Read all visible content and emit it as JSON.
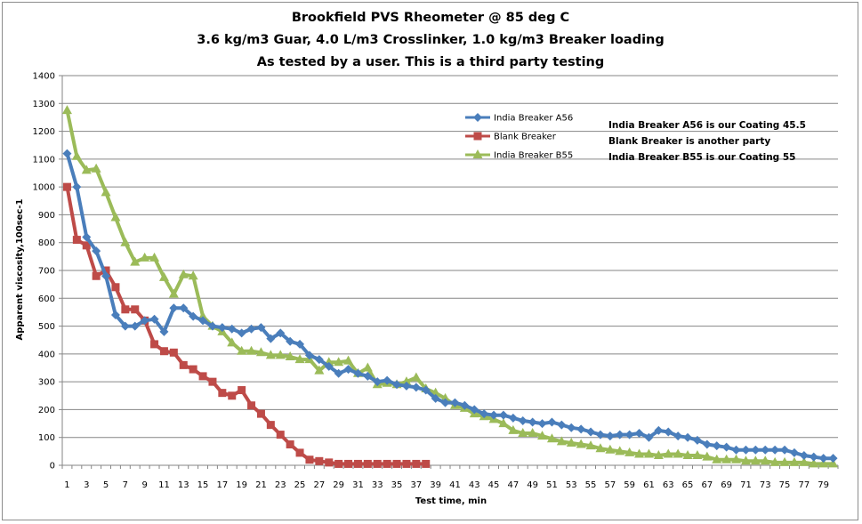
{
  "chart_data": {
    "type": "line",
    "title_lines": [
      "Brookfield PVS Rheometer @ 85 deg C",
      "3.6 kg/m3 Guar, 4.0 L/m3 Crosslinker, 1.0 kg/m3 Breaker loading",
      "As tested by a user. This is a third party testing"
    ],
    "xlabel": "Test time, min",
    "ylabel": "Apparent viscosity,100sec-1",
    "ylim": [
      0,
      1400
    ],
    "yticks": [
      0,
      100,
      200,
      300,
      400,
      500,
      600,
      700,
      800,
      900,
      1000,
      1100,
      1200,
      1300,
      1400
    ],
    "xlim": [
      1,
      80
    ],
    "xtick_labels": [
      1,
      3,
      5,
      7,
      9,
      11,
      13,
      15,
      17,
      19,
      21,
      23,
      25,
      27,
      29,
      31,
      33,
      35,
      37,
      39,
      41,
      43,
      45,
      47,
      49,
      51,
      53,
      55,
      57,
      59,
      61,
      63,
      65,
      67,
      69,
      71,
      73,
      75,
      77,
      79
    ],
    "grid": "horizontal",
    "legend_position": "top-right",
    "series": [
      {
        "name": "India Breaker A56",
        "color": "#4a7ebb",
        "marker": "diamond",
        "x": [
          1,
          2,
          3,
          4,
          5,
          6,
          7,
          8,
          9,
          10,
          11,
          12,
          13,
          14,
          15,
          16,
          17,
          18,
          19,
          20,
          21,
          22,
          23,
          24,
          25,
          26,
          27,
          28,
          29,
          30,
          31,
          32,
          33,
          34,
          35,
          36,
          37,
          38,
          39,
          40,
          41,
          42,
          43,
          44,
          45,
          46,
          47,
          48,
          49,
          50,
          51,
          52,
          53,
          54,
          55,
          56,
          57,
          58,
          59,
          60,
          61,
          62,
          63,
          64,
          65,
          66,
          67,
          68,
          69,
          70,
          71,
          72,
          73,
          74,
          75,
          76,
          77,
          78,
          79,
          80
        ],
        "values": [
          1120,
          1000,
          820,
          770,
          680,
          540,
          500,
          500,
          520,
          525,
          480,
          565,
          565,
          535,
          520,
          500,
          495,
          490,
          475,
          490,
          495,
          455,
          475,
          445,
          435,
          395,
          380,
          355,
          330,
          345,
          330,
          320,
          300,
          305,
          290,
          285,
          280,
          270,
          240,
          225,
          225,
          215,
          200,
          185,
          180,
          180,
          170,
          160,
          155,
          150,
          155,
          145,
          135,
          130,
          120,
          110,
          105,
          110,
          110,
          115,
          100,
          125,
          120,
          105,
          100,
          90,
          75,
          70,
          65,
          55,
          55,
          55,
          55,
          55,
          55,
          45,
          35,
          30,
          25,
          25
        ]
      },
      {
        "name": "Blank Breaker",
        "color": "#be4b48",
        "marker": "square",
        "x": [
          1,
          2,
          3,
          4,
          5,
          6,
          7,
          8,
          9,
          10,
          11,
          12,
          13,
          14,
          15,
          16,
          17,
          18,
          19,
          20,
          21,
          22,
          23,
          24,
          25,
          26,
          27,
          28,
          29,
          30,
          31,
          32,
          33,
          34,
          35,
          36,
          37,
          38
        ],
        "values": [
          1000,
          810,
          790,
          680,
          700,
          640,
          560,
          560,
          520,
          435,
          410,
          405,
          360,
          345,
          320,
          300,
          260,
          250,
          270,
          215,
          185,
          145,
          110,
          75,
          45,
          20,
          15,
          10,
          5,
          5,
          5,
          5,
          5,
          5,
          5,
          5,
          5,
          5
        ]
      },
      {
        "name": "India Breaker B55",
        "color": "#9bbb59",
        "marker": "triangle",
        "x": [
          1,
          2,
          3,
          4,
          5,
          6,
          7,
          8,
          9,
          10,
          11,
          12,
          13,
          14,
          15,
          16,
          17,
          18,
          19,
          20,
          21,
          22,
          23,
          24,
          25,
          26,
          27,
          28,
          29,
          30,
          31,
          32,
          33,
          34,
          35,
          36,
          37,
          38,
          39,
          40,
          41,
          42,
          43,
          44,
          45,
          46,
          47,
          48,
          49,
          50,
          51,
          52,
          53,
          54,
          55,
          56,
          57,
          58,
          59,
          60,
          61,
          62,
          63,
          64,
          65,
          66,
          67,
          68,
          69,
          70,
          71,
          72,
          73,
          74,
          75,
          76,
          77,
          78,
          79,
          80
        ],
        "values": [
          1275,
          1110,
          1060,
          1065,
          980,
          890,
          800,
          730,
          745,
          745,
          675,
          615,
          685,
          680,
          535,
          500,
          480,
          440,
          410,
          410,
          405,
          395,
          395,
          390,
          380,
          380,
          340,
          370,
          370,
          375,
          330,
          350,
          290,
          295,
          290,
          300,
          315,
          275,
          260,
          240,
          215,
          205,
          185,
          175,
          165,
          150,
          125,
          115,
          115,
          105,
          95,
          85,
          80,
          75,
          70,
          60,
          55,
          50,
          45,
          40,
          40,
          35,
          40,
          40,
          35,
          35,
          30,
          20,
          20,
          20,
          15,
          15,
          15,
          10,
          10,
          10,
          10,
          5,
          5,
          5
        ]
      }
    ],
    "annotations": [
      "India Breaker A56 is our Coating 45.5",
      "Blank Breaker is another party",
      "India Breaker B55 is our Coating  55"
    ]
  }
}
